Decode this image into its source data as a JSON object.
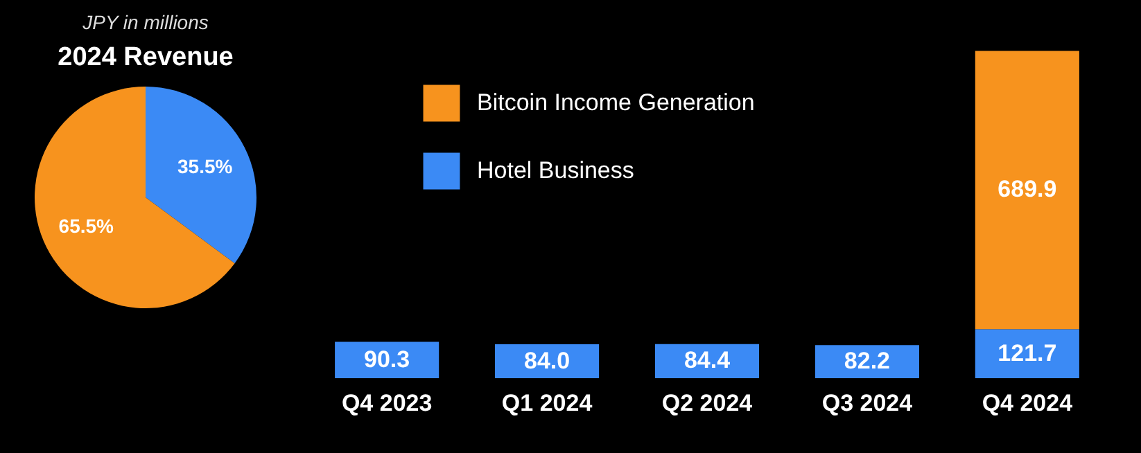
{
  "chart_data": [
    {
      "type": "pie",
      "title": "2024 Revenue",
      "annotations": [
        "JPY in millions"
      ],
      "categories": [
        null,
        null
      ],
      "values": [
        35.5,
        65.5
      ],
      "colors": [
        "#3b8af5",
        "#f7931e"
      ],
      "value_labels": [
        "35.5%",
        "65.5%"
      ],
      "legend": false
    },
    {
      "type": "bar",
      "stacked": true,
      "categories": [
        "Q4 2023",
        "Q1 2024",
        "Q2 2024",
        "Q3 2024",
        "Q4 2024"
      ],
      "series": [
        {
          "name": "Hotel Business",
          "color": "#3b8af5",
          "values": [
            90.3,
            84.0,
            84.4,
            82.2,
            121.7
          ],
          "value_labels": [
            "90.3",
            "84.0",
            "84.4",
            "82.2",
            "121.7"
          ]
        },
        {
          "name": "Bitcoin Income Generation",
          "color": "#f7931e",
          "values": [
            null,
            null,
            null,
            null,
            689.9
          ],
          "value_labels": [
            null,
            null,
            null,
            null,
            "689.9"
          ]
        }
      ],
      "legend": "top left"
    }
  ]
}
